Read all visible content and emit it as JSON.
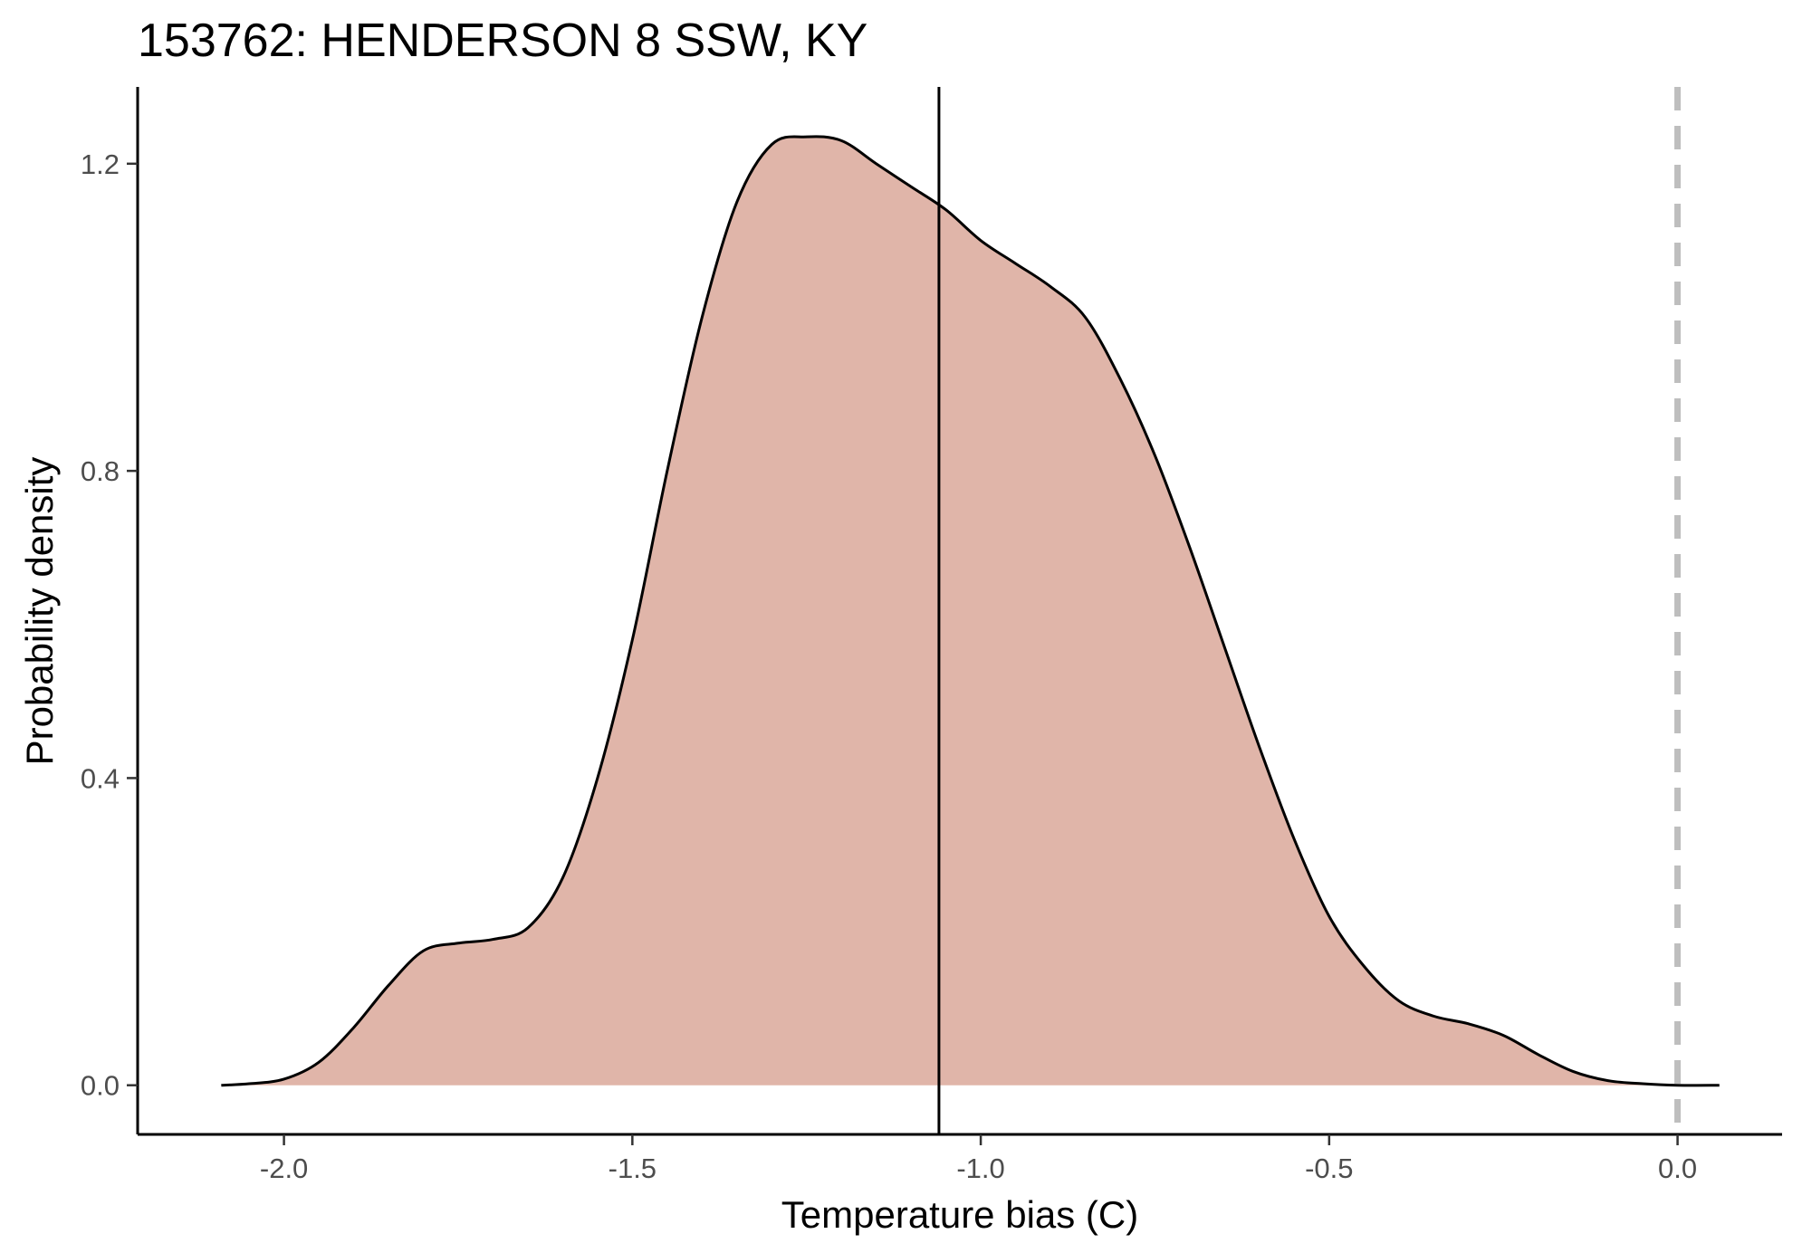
{
  "chart_data": {
    "type": "area",
    "title": "153762: HENDERSON 8 SSW, KY",
    "xlabel": "Temperature bias (C)",
    "ylabel": "Probability density",
    "xlim": [
      -2.21,
      0.15
    ],
    "ylim": [
      -0.064,
      1.3
    ],
    "x_ticks": [
      -2.0,
      -1.5,
      -1.0,
      -0.5,
      0.0
    ],
    "x_tick_labels": [
      "-2.0",
      "-1.5",
      "-1.0",
      "-0.5",
      "0.0"
    ],
    "y_ticks": [
      0.0,
      0.4,
      0.8,
      1.2
    ],
    "y_tick_labels": [
      "0.0",
      "0.4",
      "0.8",
      "1.2"
    ],
    "grid": false,
    "legend": "none",
    "fill_color": "#e0b5a9",
    "line_color": "#000000",
    "reference_lines": [
      {
        "x": -1.06,
        "style": "solid",
        "color": "#000000"
      },
      {
        "x": 0.0,
        "style": "dashed",
        "color": "#bebebe"
      }
    ],
    "series": [
      {
        "x": [
          -2.09,
          -2.05,
          -2.0,
          -1.95,
          -1.9,
          -1.85,
          -1.8,
          -1.75,
          -1.7,
          -1.65,
          -1.6,
          -1.55,
          -1.5,
          -1.45,
          -1.4,
          -1.35,
          -1.3,
          -1.25,
          -1.2,
          -1.15,
          -1.1,
          -1.05,
          -1.0,
          -0.95,
          -0.9,
          -0.85,
          -0.8,
          -0.75,
          -0.7,
          -0.65,
          -0.6,
          -0.55,
          -0.5,
          -0.45,
          -0.4,
          -0.35,
          -0.3,
          -0.25,
          -0.2,
          -0.15,
          -0.1,
          -0.05,
          0.0,
          0.06
        ],
        "y": [
          0.0,
          0.002,
          0.008,
          0.03,
          0.075,
          0.13,
          0.175,
          0.185,
          0.19,
          0.205,
          0.27,
          0.4,
          0.58,
          0.8,
          1.0,
          1.15,
          1.225,
          1.235,
          1.23,
          1.2,
          1.17,
          1.14,
          1.1,
          1.07,
          1.04,
          1.0,
          0.92,
          0.82,
          0.7,
          0.57,
          0.44,
          0.32,
          0.22,
          0.155,
          0.11,
          0.09,
          0.08,
          0.065,
          0.04,
          0.018,
          0.006,
          0.002,
          0.0,
          0.0
        ]
      }
    ]
  }
}
